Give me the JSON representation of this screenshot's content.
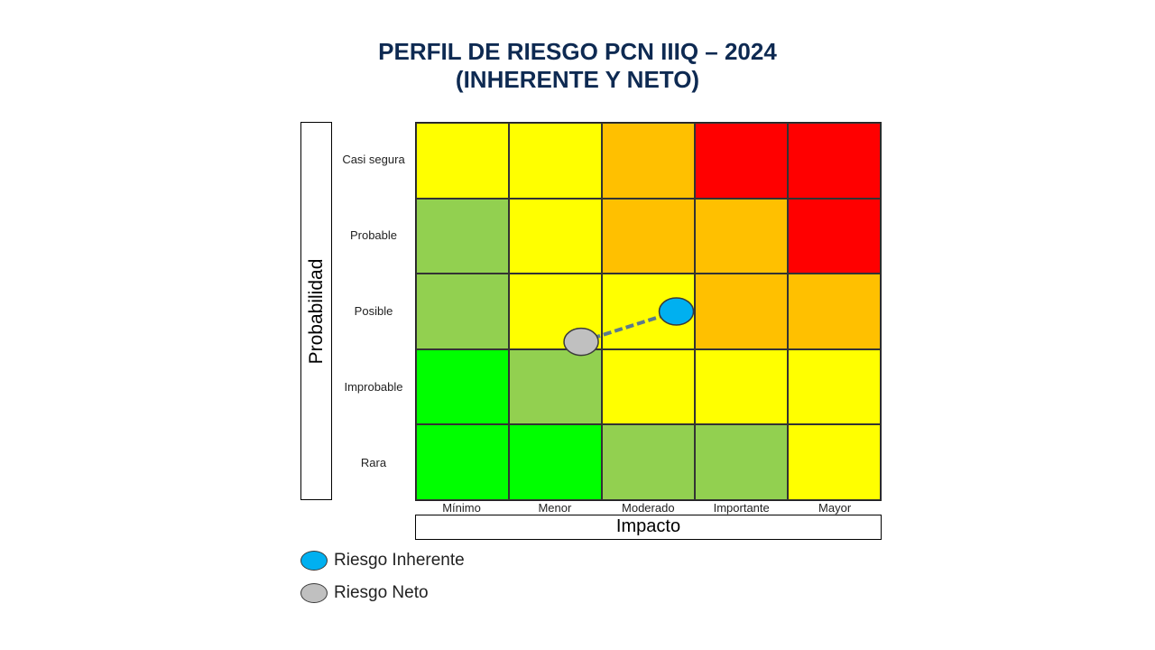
{
  "title": {
    "line1": "PERFIL DE RIESGO PCN IIIQ – 2024",
    "line2": "(INHERENTE Y NETO)"
  },
  "chart_data": {
    "type": "heatmap",
    "ylabel": "Probabilidad",
    "xlabel": "Impacto",
    "rows": [
      "Casi segura",
      "Probable",
      "Posible",
      "Improbable",
      "Rara"
    ],
    "columns": [
      "Mínimo",
      "Menor",
      "Moderado",
      "Importante",
      "Mayor"
    ],
    "cells": [
      [
        "yellow",
        "yellow",
        "orange",
        "red",
        "red"
      ],
      [
        "lightgreen",
        "yellow",
        "orange",
        "orange",
        "red"
      ],
      [
        "lightgreen",
        "yellow",
        "yellow",
        "orange",
        "orange"
      ],
      [
        "green",
        "lightgreen",
        "yellow",
        "yellow",
        "yellow"
      ],
      [
        "green",
        "green",
        "lightgreen",
        "lightgreen",
        "yellow"
      ]
    ],
    "palette": {
      "yellow": "#ffff00",
      "orange": "#ffc000",
      "red": "#ff0000",
      "lightgreen": "#92d050",
      "green": "#00ff00"
    },
    "markers": [
      {
        "name": "Riesgo Inherente",
        "impact": 3.3,
        "probability": 3.0,
        "color": "#00b0f0"
      },
      {
        "name": "Riesgo Neto",
        "impact": 2.28,
        "probability": 2.6,
        "color": "#c0c0c0"
      }
    ],
    "connector_color": "#5b7a8c",
    "legend": [
      {
        "label": "Riesgo Inherente",
        "color": "#00b0f0"
      },
      {
        "label": "Riesgo Neto",
        "color": "#c0c0c0"
      }
    ]
  }
}
